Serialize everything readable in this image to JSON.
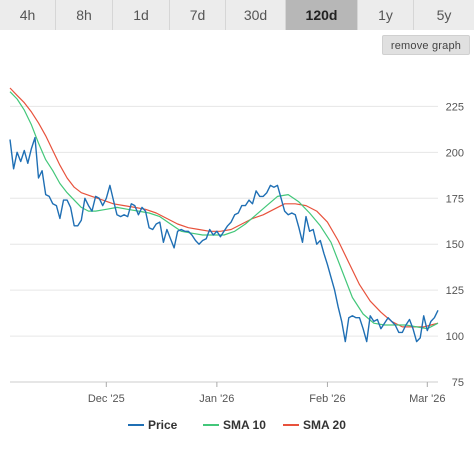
{
  "tabs": [
    {
      "label": "4h",
      "active": false
    },
    {
      "label": "8h",
      "active": false
    },
    {
      "label": "1d",
      "active": false
    },
    {
      "label": "7d",
      "active": false
    },
    {
      "label": "30d",
      "active": false
    },
    {
      "label": "120d",
      "active": true
    },
    {
      "label": "1y",
      "active": false
    },
    {
      "label": "5y",
      "active": false
    }
  ],
  "remove_graph_label": "remove graph",
  "chart_data": {
    "type": "line",
    "title": "",
    "xlabel": "",
    "ylabel": "",
    "x_range": [
      "2025-11-04",
      "2026-03-04"
    ],
    "ylim": [
      75,
      235
    ],
    "y_ticks": [
      75,
      100,
      125,
      150,
      175,
      200,
      225
    ],
    "x_ticks": [
      {
        "date": "2025-12-01",
        "label": "Dec '25"
      },
      {
        "date": "2026-01-01",
        "label": "Jan '26"
      },
      {
        "date": "2026-02-01",
        "label": "Feb '26"
      },
      {
        "date": "2026-03-01",
        "label": "Mar '26"
      }
    ],
    "grid": true,
    "legend_position": "bottom",
    "series": [
      {
        "name": "Price",
        "color": "#1f6fb4",
        "points": [
          [
            "2025-11-04",
            207
          ],
          [
            "2025-11-05",
            191
          ],
          [
            "2025-11-06",
            200
          ],
          [
            "2025-11-07",
            195
          ],
          [
            "2025-11-08",
            201
          ],
          [
            "2025-11-09",
            194
          ],
          [
            "2025-11-10",
            202
          ],
          [
            "2025-11-11",
            208
          ],
          [
            "2025-11-12",
            186
          ],
          [
            "2025-11-13",
            190
          ],
          [
            "2025-11-14",
            177
          ],
          [
            "2025-11-15",
            176
          ],
          [
            "2025-11-16",
            172
          ],
          [
            "2025-11-17",
            171
          ],
          [
            "2025-11-18",
            164
          ],
          [
            "2025-11-19",
            174
          ],
          [
            "2025-11-20",
            174
          ],
          [
            "2025-11-21",
            170
          ],
          [
            "2025-11-22",
            160
          ],
          [
            "2025-11-23",
            160
          ],
          [
            "2025-11-24",
            163
          ],
          [
            "2025-11-25",
            175
          ],
          [
            "2025-11-26",
            171
          ],
          [
            "2025-11-27",
            168
          ],
          [
            "2025-11-28",
            176
          ],
          [
            "2025-11-29",
            175
          ],
          [
            "2025-11-30",
            171
          ],
          [
            "2025-12-01",
            175
          ],
          [
            "2025-12-02",
            182
          ],
          [
            "2025-12-03",
            174
          ],
          [
            "2025-12-04",
            166
          ],
          [
            "2025-12-05",
            165
          ],
          [
            "2025-12-06",
            166
          ],
          [
            "2025-12-07",
            165
          ],
          [
            "2025-12-08",
            172
          ],
          [
            "2025-12-09",
            171
          ],
          [
            "2025-12-10",
            166
          ],
          [
            "2025-12-11",
            170
          ],
          [
            "2025-12-12",
            168
          ],
          [
            "2025-12-13",
            159
          ],
          [
            "2025-12-14",
            158
          ],
          [
            "2025-12-15",
            161
          ],
          [
            "2025-12-16",
            162
          ],
          [
            "2025-12-17",
            151
          ],
          [
            "2025-12-18",
            158
          ],
          [
            "2025-12-19",
            153
          ],
          [
            "2025-12-20",
            148
          ],
          [
            "2025-12-21",
            157
          ],
          [
            "2025-12-22",
            158
          ],
          [
            "2025-12-23",
            157
          ],
          [
            "2025-12-24",
            157
          ],
          [
            "2025-12-25",
            155
          ],
          [
            "2025-12-26",
            152
          ],
          [
            "2025-12-27",
            150
          ],
          [
            "2025-12-28",
            152
          ],
          [
            "2025-12-29",
            153
          ],
          [
            "2025-12-30",
            158
          ],
          [
            "2025-12-31",
            155
          ],
          [
            "2026-01-01",
            157
          ],
          [
            "2026-01-02",
            154
          ],
          [
            "2026-01-03",
            157
          ],
          [
            "2026-01-04",
            160
          ],
          [
            "2026-01-05",
            162
          ],
          [
            "2026-01-06",
            166
          ],
          [
            "2026-01-07",
            167
          ],
          [
            "2026-01-08",
            171
          ],
          [
            "2026-01-09",
            171
          ],
          [
            "2026-01-10",
            174
          ],
          [
            "2026-01-11",
            172
          ],
          [
            "2026-01-12",
            179
          ],
          [
            "2026-01-13",
            176
          ],
          [
            "2026-01-14",
            176
          ],
          [
            "2026-01-15",
            178
          ],
          [
            "2026-01-16",
            182
          ],
          [
            "2026-01-17",
            181
          ],
          [
            "2026-01-18",
            182
          ],
          [
            "2026-01-19",
            175
          ],
          [
            "2026-01-20",
            168
          ],
          [
            "2026-01-21",
            166
          ],
          [
            "2026-01-22",
            167
          ],
          [
            "2026-01-23",
            166
          ],
          [
            "2026-01-24",
            159
          ],
          [
            "2026-01-25",
            151
          ],
          [
            "2026-01-26",
            165
          ],
          [
            "2026-01-27",
            157
          ],
          [
            "2026-01-28",
            158
          ],
          [
            "2026-01-29",
            150
          ],
          [
            "2026-01-30",
            152
          ],
          [
            "2026-01-31",
            145
          ],
          [
            "2026-02-01",
            139
          ],
          [
            "2026-02-02",
            132
          ],
          [
            "2026-02-03",
            125
          ],
          [
            "2026-02-04",
            116
          ],
          [
            "2026-02-05",
            108
          ],
          [
            "2026-02-06",
            97
          ],
          [
            "2026-02-07",
            110
          ],
          [
            "2026-02-08",
            111
          ],
          [
            "2026-02-09",
            110
          ],
          [
            "2026-02-10",
            110
          ],
          [
            "2026-02-11",
            104
          ],
          [
            "2026-02-12",
            97
          ],
          [
            "2026-02-13",
            111
          ],
          [
            "2026-02-14",
            108
          ],
          [
            "2026-02-15",
            109
          ],
          [
            "2026-02-16",
            104
          ],
          [
            "2026-02-17",
            107
          ],
          [
            "2026-02-18",
            110
          ],
          [
            "2026-02-19",
            108
          ],
          [
            "2026-02-20",
            106
          ],
          [
            "2026-02-21",
            102
          ],
          [
            "2026-02-22",
            102
          ],
          [
            "2026-02-23",
            106
          ],
          [
            "2026-02-24",
            109
          ],
          [
            "2026-02-25",
            104
          ],
          [
            "2026-02-26",
            97
          ],
          [
            "2026-02-27",
            99
          ],
          [
            "2026-02-28",
            111
          ],
          [
            "2026-03-01",
            103
          ],
          [
            "2026-03-02",
            108
          ],
          [
            "2026-03-03",
            110
          ],
          [
            "2026-03-04",
            114
          ]
        ]
      },
      {
        "name": "SMA 10",
        "color": "#43c77a",
        "points": [
          [
            "2025-11-04",
            233
          ],
          [
            "2025-11-06",
            229
          ],
          [
            "2025-11-08",
            223
          ],
          [
            "2025-11-10",
            215
          ],
          [
            "2025-11-12",
            205
          ],
          [
            "2025-11-14",
            196
          ],
          [
            "2025-11-16",
            190
          ],
          [
            "2025-11-18",
            183
          ],
          [
            "2025-11-20",
            178
          ],
          [
            "2025-11-22",
            174
          ],
          [
            "2025-11-24",
            170
          ],
          [
            "2025-11-26",
            168
          ],
          [
            "2025-11-28",
            168
          ],
          [
            "2025-12-01",
            169
          ],
          [
            "2025-12-04",
            170
          ],
          [
            "2025-12-07",
            169
          ],
          [
            "2025-12-10",
            168
          ],
          [
            "2025-12-13",
            167
          ],
          [
            "2025-12-16",
            165
          ],
          [
            "2025-12-19",
            161
          ],
          [
            "2025-12-22",
            157
          ],
          [
            "2025-12-25",
            156
          ],
          [
            "2025-12-28",
            155
          ],
          [
            "2025-12-31",
            155
          ],
          [
            "2026-01-03",
            155
          ],
          [
            "2026-01-06",
            157
          ],
          [
            "2026-01-09",
            161
          ],
          [
            "2026-01-12",
            166
          ],
          [
            "2026-01-15",
            171
          ],
          [
            "2026-01-18",
            176
          ],
          [
            "2026-01-21",
            177
          ],
          [
            "2026-01-24",
            173
          ],
          [
            "2026-01-27",
            167
          ],
          [
            "2026-01-30",
            160
          ],
          [
            "2026-02-02",
            151
          ],
          [
            "2026-02-05",
            136
          ],
          [
            "2026-02-08",
            121
          ],
          [
            "2026-02-11",
            112
          ],
          [
            "2026-02-14",
            107
          ],
          [
            "2026-02-17",
            106
          ],
          [
            "2026-02-20",
            106
          ],
          [
            "2026-02-23",
            106
          ],
          [
            "2026-02-26",
            105
          ],
          [
            "2026-03-01",
            104
          ],
          [
            "2026-03-04",
            107
          ]
        ]
      },
      {
        "name": "SMA 20",
        "color": "#e8523c",
        "points": [
          [
            "2025-11-04",
            235
          ],
          [
            "2025-11-06",
            231
          ],
          [
            "2025-11-08",
            227
          ],
          [
            "2025-11-10",
            222
          ],
          [
            "2025-11-12",
            216
          ],
          [
            "2025-11-14",
            209
          ],
          [
            "2025-11-16",
            201
          ],
          [
            "2025-11-18",
            193
          ],
          [
            "2025-11-20",
            186
          ],
          [
            "2025-11-22",
            181
          ],
          [
            "2025-11-24",
            178
          ],
          [
            "2025-11-27",
            176
          ],
          [
            "2025-11-30",
            174
          ],
          [
            "2025-12-03",
            172
          ],
          [
            "2025-12-06",
            171
          ],
          [
            "2025-12-09",
            170
          ],
          [
            "2025-12-12",
            169
          ],
          [
            "2025-12-15",
            167
          ],
          [
            "2025-12-18",
            164
          ],
          [
            "2025-12-21",
            161
          ],
          [
            "2025-12-24",
            159
          ],
          [
            "2025-12-27",
            158
          ],
          [
            "2025-12-30",
            157
          ],
          [
            "2026-01-02",
            157
          ],
          [
            "2026-01-05",
            158
          ],
          [
            "2026-01-08",
            161
          ],
          [
            "2026-01-11",
            164
          ],
          [
            "2026-01-14",
            166
          ],
          [
            "2026-01-17",
            169
          ],
          [
            "2026-01-20",
            172
          ],
          [
            "2026-01-23",
            172
          ],
          [
            "2026-01-26",
            171
          ],
          [
            "2026-01-29",
            168
          ],
          [
            "2026-02-01",
            162
          ],
          [
            "2026-02-04",
            152
          ],
          [
            "2026-02-07",
            140
          ],
          [
            "2026-02-10",
            128
          ],
          [
            "2026-02-13",
            119
          ],
          [
            "2026-02-16",
            113
          ],
          [
            "2026-02-19",
            108
          ],
          [
            "2026-02-22",
            105
          ],
          [
            "2026-02-25",
            105
          ],
          [
            "2026-02-28",
            105
          ],
          [
            "2026-03-02",
            106
          ],
          [
            "2026-03-04",
            107
          ]
        ]
      }
    ]
  }
}
